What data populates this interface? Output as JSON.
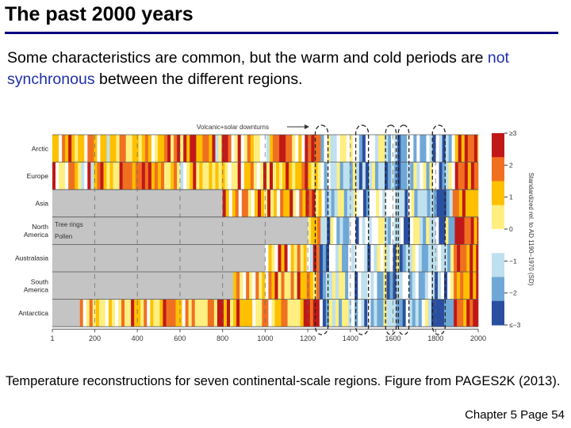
{
  "slide": {
    "title": "The past 2000 years",
    "subtitle_part1": "Some characteristics are common, but the warm and cold periods are ",
    "subtitle_highlight": "not synchronous",
    "subtitle_part2": " between the different regions.",
    "caption": "Temperature reconstructions for seven continental-scale regions. Figure from PAGES2K (2013).",
    "page_number": "Chapter 5 Page 54"
  },
  "chart_data": {
    "type": "heatmap",
    "annotation": "Volcanic+solar downturns",
    "regions": [
      {
        "label_lines": [
          "Arctic"
        ],
        "start_year": 1
      },
      {
        "label_lines": [
          "Europe"
        ],
        "start_year": 1
      },
      {
        "label_lines": [
          "Asia"
        ],
        "start_year": 800
      },
      {
        "label_lines": [
          "North",
          "America"
        ],
        "start_year": 1200,
        "sublabels": [
          "Tree rings",
          "Pollen"
        ]
      },
      {
        "label_lines": [
          "Australasia"
        ],
        "start_year": 1000
      },
      {
        "label_lines": [
          "South",
          "America"
        ],
        "start_year": 850
      },
      {
        "label_lines": [
          "Antarctica"
        ],
        "start_year": 130
      }
    ],
    "x_ticks": [
      "1",
      "200",
      "400",
      "600",
      "800",
      "1000",
      "1200",
      "1400",
      "1600",
      "1800",
      "2000"
    ],
    "xlim": [
      1,
      2000
    ],
    "colorbar": {
      "label": "Standardized rel. to AD 1190–1970 (SD)",
      "ticks": [
        "≥3",
        "2",
        "1",
        "0",
        "−1",
        "−2",
        "≤−3"
      ],
      "range": [
        -3,
        3
      ]
    },
    "downturn_periods": [
      [
        1250,
        1280
      ],
      [
        1440,
        1470
      ],
      [
        1580,
        1600
      ],
      [
        1640,
        1660
      ],
      [
        1800,
        1830
      ]
    ],
    "colors": {
      "cold_strong": "#2a4fa0",
      "cold": "#6fa8d6",
      "cool": "#bfe0ee",
      "neutral": "#ffffff",
      "warm_light": "#ffef80",
      "warm": "#ffc000",
      "hot": "#f07020",
      "hot_strong": "#c01818",
      "missing": "#c4c4c4"
    }
  }
}
